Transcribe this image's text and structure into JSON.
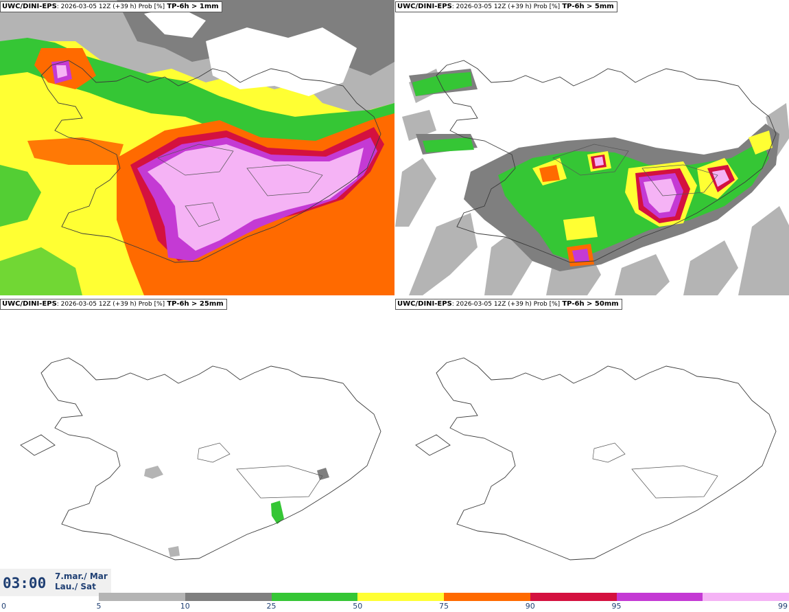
{
  "panels": [
    {
      "model": "UWC/DINI-EPS",
      "meta": ": 2026-03-05 12Z (+39 h) Prob [%]",
      "threshold": "TP-6h > 1mm"
    },
    {
      "model": "UWC/DINI-EPS",
      "meta": ": 2026-03-05 12Z (+39 h) Prob [%]",
      "threshold": "TP-6h > 5mm"
    },
    {
      "model": "UWC/DINI-EPS",
      "meta": ": 2026-03-05 12Z (+39 h) Prob [%]",
      "threshold": "TP-6h > 25mm"
    },
    {
      "model": "UWC/DINI-EPS",
      "meta": ": 2026-03-05 12Z (+39 h) Prob [%]",
      "threshold": "TP-6h > 50mm"
    }
  ],
  "valid_time": {
    "clock": "03:00",
    "date_line1": "7.mar./ Mar",
    "date_line2": "Lau./ Sat"
  },
  "legend": {
    "ticks": [
      "0",
      "5",
      "10",
      "25",
      "50",
      "75",
      "90",
      "95",
      "99"
    ],
    "colors": [
      "#b4b4b4",
      "#7f7f7f",
      "#35c635",
      "#ffff33",
      "#ff6a00",
      "#d4113f",
      "#c43ad4",
      "#f5b3f5"
    ]
  }
}
